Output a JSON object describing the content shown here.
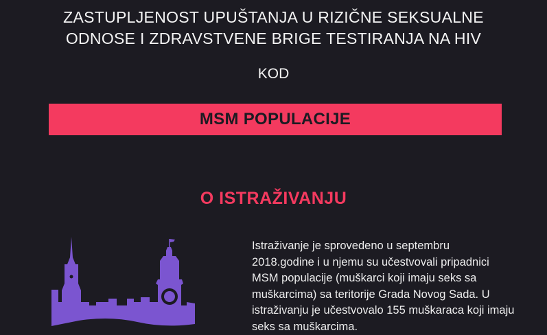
{
  "header": {
    "title_lines": [
      "ZASTUPLJENOST UPUŠTANJA U RIZIČNE SEKSUALNE",
      "ODNOSE I ZDRAVSTVENE BRIGE TESTIRANJA NA HIV"
    ],
    "subtitle": "KOD",
    "banner": "MSM POPULACIJE"
  },
  "section": {
    "heading": "O ISTRAŽIVANJU",
    "illustration": "city-skyline-icon",
    "paragraph_lines": [
      "Istraživanje je sprovedeno u septembru",
      "2018.godine i u njemu su učestvovali pripadnici",
      "MSM populacije (muškarci koji imaju seks sa",
      "muškarcima) sa teritorije Grada Novog Sada. U",
      "istraživanju je učestvovalo 155 muškaraca koji imaju",
      "seks sa muškarcima."
    ]
  },
  "colors": {
    "background": "#1c1b22",
    "accent": "#f43a5f",
    "illustration": "#7b55d0"
  }
}
